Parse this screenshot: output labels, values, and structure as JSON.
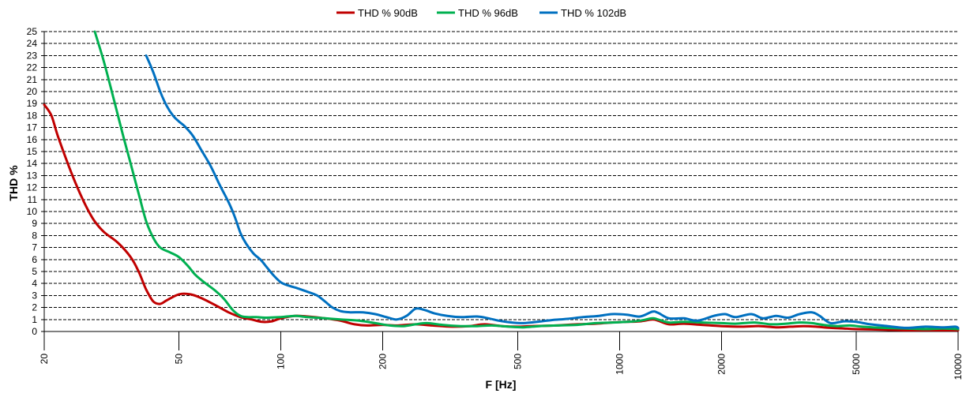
{
  "chart_data": {
    "type": "line",
    "xscale": "log",
    "xlabel": "F [Hz]",
    "ylabel": "THD %",
    "xlim": [
      20,
      10000
    ],
    "ylim": [
      0,
      25
    ],
    "grid": true,
    "legend_position": "top-center",
    "x_ticks": [
      20,
      50,
      100,
      200,
      500,
      1000,
      2000,
      5000,
      10000
    ],
    "x_tick_labels": [
      "20",
      "50",
      "100",
      "200",
      "500",
      "1000",
      "2000",
      "5000",
      "10000"
    ],
    "y_ticks": [
      0,
      1,
      2,
      3,
      4,
      5,
      6,
      7,
      8,
      9,
      10,
      11,
      12,
      13,
      14,
      15,
      16,
      17,
      18,
      19,
      20,
      21,
      22,
      23,
      24,
      25
    ],
    "y_tick_labels": [
      "0",
      "1",
      "2",
      "3",
      "4",
      "5",
      "6",
      "7",
      "8",
      "9",
      "10",
      "11",
      "12",
      "13",
      "14",
      "15",
      "16",
      "17",
      "18",
      "19",
      "20",
      "21",
      "22",
      "23",
      "24",
      "25"
    ],
    "series": [
      {
        "name": "THD % 90dB",
        "color": "#c00000",
        "points": [
          [
            20,
            18.9
          ],
          [
            21,
            18
          ],
          [
            22,
            16.2
          ],
          [
            24,
            13.3
          ],
          [
            26,
            11
          ],
          [
            28,
            9.3
          ],
          [
            30,
            8.3
          ],
          [
            33,
            7.4
          ],
          [
            36,
            6.2
          ],
          [
            38,
            5
          ],
          [
            40,
            3.5
          ],
          [
            42,
            2.5
          ],
          [
            44,
            2.3
          ],
          [
            46,
            2.6
          ],
          [
            50,
            3.1
          ],
          [
            54,
            3.1
          ],
          [
            58,
            2.8
          ],
          [
            64,
            2.2
          ],
          [
            70,
            1.6
          ],
          [
            76,
            1.2
          ],
          [
            82,
            1.0
          ],
          [
            88,
            0.8
          ],
          [
            94,
            0.85
          ],
          [
            100,
            1.1
          ],
          [
            110,
            1.3
          ],
          [
            120,
            1.25
          ],
          [
            135,
            1.1
          ],
          [
            150,
            0.9
          ],
          [
            165,
            0.6
          ],
          [
            180,
            0.5
          ],
          [
            200,
            0.55
          ],
          [
            220,
            0.5
          ],
          [
            250,
            0.6
          ],
          [
            280,
            0.5
          ],
          [
            320,
            0.4
          ],
          [
            360,
            0.45
          ],
          [
            400,
            0.6
          ],
          [
            450,
            0.45
          ],
          [
            500,
            0.4
          ],
          [
            550,
            0.45
          ],
          [
            650,
            0.5
          ],
          [
            750,
            0.6
          ],
          [
            850,
            0.65
          ],
          [
            950,
            0.75
          ],
          [
            1050,
            0.8
          ],
          [
            1150,
            0.85
          ],
          [
            1250,
            1.0
          ],
          [
            1300,
            0.9
          ],
          [
            1400,
            0.6
          ],
          [
            1550,
            0.65
          ],
          [
            1750,
            0.55
          ],
          [
            2000,
            0.45
          ],
          [
            2300,
            0.4
          ],
          [
            2600,
            0.45
          ],
          [
            2900,
            0.35
          ],
          [
            3200,
            0.4
          ],
          [
            3500,
            0.45
          ],
          [
            3800,
            0.4
          ],
          [
            4200,
            0.3
          ],
          [
            4600,
            0.25
          ],
          [
            5000,
            0.2
          ],
          [
            6000,
            0.15
          ],
          [
            7000,
            0.1
          ],
          [
            8000,
            0.1
          ],
          [
            10000,
            0.1
          ]
        ]
      },
      {
        "name": "THD % 96dB",
        "color": "#00b050",
        "points": [
          [
            28.2,
            25
          ],
          [
            30,
            22.5
          ],
          [
            32,
            19.5
          ],
          [
            34,
            16.6
          ],
          [
            36,
            14
          ],
          [
            38,
            11.5
          ],
          [
            40,
            9.2
          ],
          [
            42,
            7.8
          ],
          [
            44,
            7
          ],
          [
            47,
            6.6
          ],
          [
            50,
            6.2
          ],
          [
            53,
            5.5
          ],
          [
            56,
            4.7
          ],
          [
            60,
            4
          ],
          [
            64,
            3.4
          ],
          [
            68,
            2.7
          ],
          [
            72,
            1.8
          ],
          [
            76,
            1.3
          ],
          [
            80,
            1.2
          ],
          [
            85,
            1.2
          ],
          [
            90,
            1.15
          ],
          [
            100,
            1.2
          ],
          [
            110,
            1.3
          ],
          [
            120,
            1.2
          ],
          [
            135,
            1.1
          ],
          [
            150,
            1.0
          ],
          [
            170,
            0.9
          ],
          [
            190,
            0.7
          ],
          [
            210,
            0.5
          ],
          [
            230,
            0.45
          ],
          [
            250,
            0.6
          ],
          [
            270,
            0.7
          ],
          [
            300,
            0.55
          ],
          [
            340,
            0.45
          ],
          [
            380,
            0.45
          ],
          [
            420,
            0.5
          ],
          [
            470,
            0.4
          ],
          [
            520,
            0.35
          ],
          [
            580,
            0.45
          ],
          [
            650,
            0.5
          ],
          [
            750,
            0.55
          ],
          [
            850,
            0.7
          ],
          [
            950,
            0.75
          ],
          [
            1050,
            0.8
          ],
          [
            1150,
            0.9
          ],
          [
            1250,
            1.1
          ],
          [
            1300,
            1.0
          ],
          [
            1400,
            0.75
          ],
          [
            1550,
            0.8
          ],
          [
            1750,
            0.75
          ],
          [
            2000,
            0.7
          ],
          [
            2200,
            0.65
          ],
          [
            2500,
            0.75
          ],
          [
            2800,
            0.6
          ],
          [
            3100,
            0.65
          ],
          [
            3400,
            0.75
          ],
          [
            3700,
            0.7
          ],
          [
            4000,
            0.55
          ],
          [
            4400,
            0.45
          ],
          [
            4800,
            0.5
          ],
          [
            5200,
            0.4
          ],
          [
            6000,
            0.3
          ],
          [
            7000,
            0.25
          ],
          [
            8000,
            0.2
          ],
          [
            9000,
            0.25
          ],
          [
            10000,
            0.2
          ]
        ]
      },
      {
        "name": "THD % 102dB",
        "color": "#0070c0",
        "points": [
          [
            40,
            23
          ],
          [
            42,
            21.6
          ],
          [
            44,
            20
          ],
          [
            46,
            18.8
          ],
          [
            48,
            18
          ],
          [
            50,
            17.5
          ],
          [
            52,
            17.1
          ],
          [
            55,
            16.3
          ],
          [
            58,
            15.2
          ],
          [
            62,
            13.8
          ],
          [
            66,
            12.2
          ],
          [
            70,
            10.8
          ],
          [
            73,
            9.6
          ],
          [
            76,
            8.2
          ],
          [
            79,
            7.3
          ],
          [
            83,
            6.5
          ],
          [
            87,
            6
          ],
          [
            90,
            5.5
          ],
          [
            95,
            4.7
          ],
          [
            100,
            4.1
          ],
          [
            106,
            3.8
          ],
          [
            112,
            3.6
          ],
          [
            120,
            3.3
          ],
          [
            128,
            3
          ],
          [
            135,
            2.5
          ],
          [
            142,
            2
          ],
          [
            150,
            1.7
          ],
          [
            160,
            1.6
          ],
          [
            175,
            1.6
          ],
          [
            190,
            1.45
          ],
          [
            205,
            1.2
          ],
          [
            220,
            1.0
          ],
          [
            235,
            1.3
          ],
          [
            250,
            1.9
          ],
          [
            265,
            1.8
          ],
          [
            285,
            1.5
          ],
          [
            310,
            1.3
          ],
          [
            340,
            1.2
          ],
          [
            380,
            1.25
          ],
          [
            410,
            1.1
          ],
          [
            440,
            0.9
          ],
          [
            480,
            0.75
          ],
          [
            520,
            0.7
          ],
          [
            570,
            0.8
          ],
          [
            630,
            0.95
          ],
          [
            700,
            1.05
          ],
          [
            780,
            1.2
          ],
          [
            870,
            1.3
          ],
          [
            950,
            1.45
          ],
          [
            1050,
            1.4
          ],
          [
            1150,
            1.25
          ],
          [
            1250,
            1.65
          ],
          [
            1300,
            1.55
          ],
          [
            1400,
            1.1
          ],
          [
            1550,
            1.1
          ],
          [
            1700,
            0.9
          ],
          [
            1900,
            1.3
          ],
          [
            2050,
            1.45
          ],
          [
            2200,
            1.2
          ],
          [
            2450,
            1.45
          ],
          [
            2650,
            1.1
          ],
          [
            2900,
            1.3
          ],
          [
            3150,
            1.15
          ],
          [
            3400,
            1.45
          ],
          [
            3700,
            1.6
          ],
          [
            3900,
            1.3
          ],
          [
            4200,
            0.7
          ],
          [
            4600,
            0.85
          ],
          [
            5000,
            0.8
          ],
          [
            5500,
            0.6
          ],
          [
            6200,
            0.45
          ],
          [
            7000,
            0.3
          ],
          [
            8000,
            0.4
          ],
          [
            9000,
            0.35
          ],
          [
            9800,
            0.4
          ],
          [
            10000,
            0.3
          ]
        ]
      }
    ]
  }
}
